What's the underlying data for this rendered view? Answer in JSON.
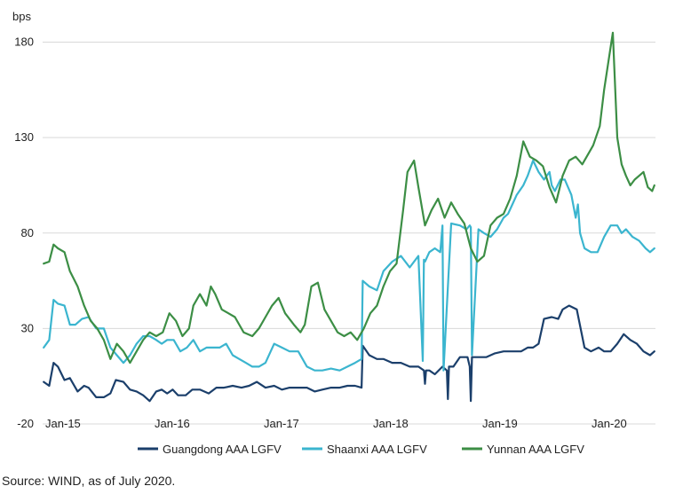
{
  "chart_data": {
    "type": "line",
    "ylabel": "bps",
    "ylim": [
      -20,
      190
    ],
    "yticks": [
      -20,
      30,
      80,
      130,
      180
    ],
    "xlim": [
      2014.96,
      2020.57
    ],
    "xticks": [
      {
        "label": "Jan-15",
        "value": 2015.0
      },
      {
        "label": "Jan-16",
        "value": 2016.0
      },
      {
        "label": "Jan-17",
        "value": 2017.0
      },
      {
        "label": "Jan-18",
        "value": 2018.0
      },
      {
        "label": "Jan-19",
        "value": 2019.0
      },
      {
        "label": "Jan-20",
        "value": 2020.0
      }
    ],
    "grid": "horizontal",
    "legend": "bottom",
    "series": [
      {
        "name": "Guangdong AAA LGFV",
        "color": "#1b3f6b",
        "x": [
          2014.97,
          2015.02,
          2015.06,
          2015.1,
          2015.16,
          2015.21,
          2015.28,
          2015.34,
          2015.38,
          2015.45,
          2015.52,
          2015.58,
          2015.63,
          2015.7,
          2015.76,
          2015.82,
          2015.88,
          2015.94,
          2016.0,
          2016.05,
          2016.1,
          2016.15,
          2016.2,
          2016.27,
          2016.33,
          2016.4,
          2016.48,
          2016.55,
          2016.62,
          2016.7,
          2016.78,
          2016.85,
          2016.92,
          2017.0,
          2017.08,
          2017.15,
          2017.22,
          2017.3,
          2017.38,
          2017.45,
          2017.52,
          2017.6,
          2017.68,
          2017.75,
          2017.82,
          2017.88,
          2017.89,
          2017.95,
          2018.02,
          2018.08,
          2018.16,
          2018.24,
          2018.32,
          2018.4,
          2018.45,
          2018.46,
          2018.47,
          2018.5,
          2018.55,
          2018.62,
          2018.66,
          2018.67,
          2018.68,
          2018.72,
          2018.78,
          2018.85,
          2018.87,
          2018.88,
          2018.89,
          2018.95,
          2019.02,
          2019.1,
          2019.18,
          2019.26,
          2019.34,
          2019.4,
          2019.45,
          2019.5,
          2019.55,
          2019.62,
          2019.68,
          2019.72,
          2019.78,
          2019.85,
          2019.92,
          2019.98,
          2020.05,
          2020.1,
          2020.16,
          2020.22,
          2020.28,
          2020.34,
          2020.4,
          2020.46,
          2020.52,
          2020.56
        ],
        "y": [
          2,
          0,
          12,
          10,
          3,
          4,
          -3,
          0,
          -1,
          -6,
          -6,
          -4,
          3,
          2,
          -2,
          -3,
          -5,
          -8,
          -3,
          -2,
          -4,
          -2,
          -5,
          -5,
          -2,
          -2,
          -4,
          -1,
          -1,
          0,
          -1,
          0,
          2,
          -1,
          0,
          -2,
          -1,
          -1,
          -1,
          -3,
          -2,
          -1,
          -1,
          0,
          0,
          -1,
          21,
          16,
          14,
          14,
          12,
          12,
          10,
          10,
          8,
          1,
          8,
          8,
          6,
          10,
          8,
          -7,
          10,
          10,
          15,
          15,
          10,
          -8,
          15,
          15,
          15,
          17,
          18,
          18,
          18,
          20,
          20,
          22,
          35,
          36,
          35,
          40,
          42,
          40,
          20,
          18,
          20,
          18,
          18,
          22,
          27,
          24,
          22,
          18,
          16,
          18
        ]
      },
      {
        "name": "Shaanxi AAA LGFV",
        "color": "#3bb5cf",
        "x": [
          2014.97,
          2015.02,
          2015.06,
          2015.1,
          2015.16,
          2015.21,
          2015.26,
          2015.32,
          2015.38,
          2015.45,
          2015.52,
          2015.58,
          2015.64,
          2015.7,
          2015.76,
          2015.82,
          2015.88,
          2015.94,
          2016.0,
          2016.05,
          2016.1,
          2016.16,
          2016.22,
          2016.28,
          2016.34,
          2016.4,
          2016.46,
          2016.52,
          2016.58,
          2016.64,
          2016.7,
          2016.76,
          2016.82,
          2016.88,
          2016.94,
          2017.0,
          2017.08,
          2017.15,
          2017.22,
          2017.3,
          2017.38,
          2017.45,
          2017.52,
          2017.6,
          2017.68,
          2017.75,
          2017.82,
          2017.88,
          2017.89,
          2017.95,
          2018.02,
          2018.08,
          2018.16,
          2018.24,
          2018.32,
          2018.4,
          2018.44,
          2018.45,
          2018.46,
          2018.5,
          2018.55,
          2018.6,
          2018.62,
          2018.63,
          2018.7,
          2018.78,
          2018.84,
          2018.87,
          2018.88,
          2018.89,
          2018.95,
          2019.0,
          2019.06,
          2019.12,
          2019.18,
          2019.22,
          2019.26,
          2019.3,
          2019.36,
          2019.4,
          2019.45,
          2019.5,
          2019.55,
          2019.6,
          2019.62,
          2019.65,
          2019.7,
          2019.74,
          2019.8,
          2019.84,
          2019.86,
          2019.88,
          2019.92,
          2019.98,
          2020.04,
          2020.1,
          2020.16,
          2020.22,
          2020.26,
          2020.3,
          2020.36,
          2020.42,
          2020.48,
          2020.52,
          2020.56
        ],
        "y": [
          20,
          24,
          45,
          43,
          42,
          32,
          32,
          35,
          36,
          30,
          30,
          20,
          16,
          12,
          16,
          22,
          26,
          26,
          24,
          22,
          24,
          24,
          18,
          20,
          24,
          18,
          20,
          20,
          20,
          22,
          16,
          14,
          12,
          10,
          10,
          12,
          22,
          20,
          18,
          18,
          10,
          8,
          8,
          9,
          8,
          10,
          12,
          14,
          55,
          52,
          50,
          60,
          65,
          68,
          62,
          68,
          13,
          66,
          65,
          70,
          72,
          70,
          84,
          8,
          85,
          84,
          82,
          84,
          83,
          16,
          82,
          80,
          78,
          82,
          88,
          90,
          95,
          100,
          105,
          110,
          118,
          112,
          108,
          112,
          105,
          102,
          108,
          108,
          100,
          88,
          95,
          80,
          72,
          70,
          70,
          78,
          84,
          84,
          80,
          82,
          78,
          76,
          72,
          70,
          72
        ]
      },
      {
        "name": "Yunnan AAA LGFV",
        "color": "#3c8e45",
        "x": [
          2014.97,
          2015.02,
          2015.06,
          2015.1,
          2015.16,
          2015.21,
          2015.28,
          2015.34,
          2015.4,
          2015.46,
          2015.52,
          2015.58,
          2015.64,
          2015.7,
          2015.76,
          2015.82,
          2015.88,
          2015.94,
          2016.0,
          2016.06,
          2016.12,
          2016.18,
          2016.24,
          2016.3,
          2016.34,
          2016.4,
          2016.46,
          2016.5,
          2016.54,
          2016.6,
          2016.66,
          2016.72,
          2016.8,
          2016.88,
          2016.94,
          2017.0,
          2017.06,
          2017.12,
          2017.18,
          2017.26,
          2017.32,
          2017.36,
          2017.42,
          2017.48,
          2017.54,
          2017.6,
          2017.66,
          2017.72,
          2017.78,
          2017.84,
          2017.9,
          2017.96,
          2018.02,
          2018.08,
          2018.14,
          2018.2,
          2018.26,
          2018.3,
          2018.36,
          2018.4,
          2018.46,
          2018.52,
          2018.58,
          2018.64,
          2018.7,
          2018.76,
          2018.82,
          2018.88,
          2018.94,
          2019.0,
          2019.06,
          2019.12,
          2019.18,
          2019.24,
          2019.3,
          2019.36,
          2019.42,
          2019.48,
          2019.54,
          2019.6,
          2019.66,
          2019.72,
          2019.78,
          2019.84,
          2019.9,
          2019.96,
          2020.0,
          2020.06,
          2020.1,
          2020.14,
          2020.18,
          2020.22,
          2020.26,
          2020.3,
          2020.34,
          2020.38,
          2020.42,
          2020.46,
          2020.5,
          2020.54,
          2020.56
        ],
        "y": [
          64,
          65,
          74,
          72,
          70,
          60,
          52,
          42,
          34,
          30,
          24,
          14,
          22,
          18,
          12,
          18,
          24,
          28,
          26,
          28,
          38,
          34,
          26,
          30,
          42,
          48,
          42,
          52,
          48,
          40,
          38,
          36,
          28,
          26,
          30,
          36,
          42,
          46,
          38,
          32,
          28,
          32,
          52,
          54,
          40,
          34,
          28,
          26,
          28,
          24,
          30,
          38,
          42,
          52,
          60,
          64,
          92,
          112,
          118,
          104,
          84,
          92,
          98,
          88,
          96,
          90,
          85,
          72,
          65,
          68,
          84,
          88,
          90,
          98,
          110,
          128,
          120,
          118,
          115,
          104,
          96,
          110,
          118,
          120,
          116,
          122,
          126,
          136,
          155,
          170,
          185,
          130,
          116,
          110,
          105,
          108,
          110,
          112,
          104,
          102,
          105
        ]
      }
    ]
  },
  "source_note": "Source: WIND, as of July 2020."
}
